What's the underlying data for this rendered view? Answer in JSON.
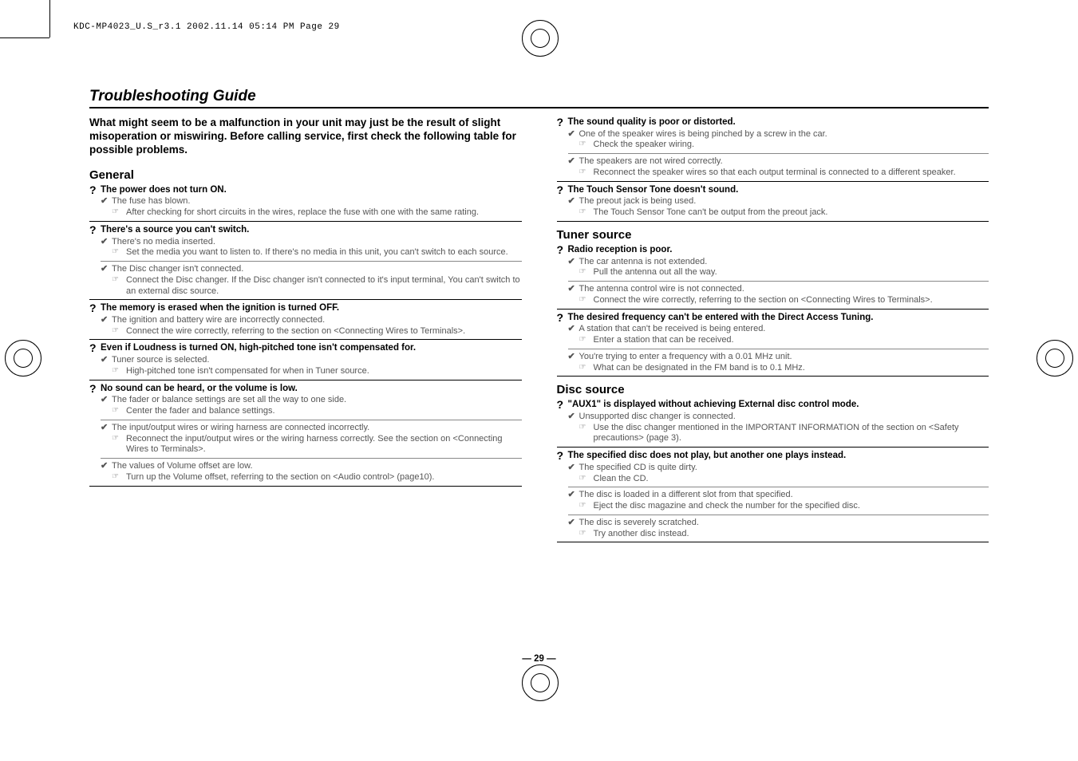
{
  "header_line": "KDC-MP4023_U.S_r3.1  2002.11.14  05:14 PM  Page 29",
  "title": "Troubleshooting Guide",
  "intro": "What might seem to be a malfunction in your unit may just be the result of slight misoperation or miswiring. Before calling service, first check the following table for possible problems.",
  "page_number": "— 29 —",
  "sections": {
    "general": "General",
    "tuner": "Tuner source",
    "disc": "Disc source"
  },
  "left": {
    "q1": {
      "q": "The power does not turn ON.",
      "c1": "The fuse has blown.",
      "r1": "After checking for short circuits in the wires, replace the fuse with one with the same rating."
    },
    "q2": {
      "q": "There's a source you can't switch.",
      "c1": "There's no media inserted.",
      "r1": "Set the media you want to listen to. If there's no media in this unit, you can't switch to each source.",
      "c2": "The Disc changer isn't connected.",
      "r2": "Connect the Disc changer. If the Disc changer isn't connected to it's input terminal, You can't switch to an external disc source."
    },
    "q3": {
      "q": "The memory is erased when the ignition is turned OFF.",
      "c1": "The ignition and battery wire are incorrectly connected.",
      "r1": "Connect the wire correctly, referring to the section on <Connecting Wires to Terminals>."
    },
    "q4": {
      "q": "Even if Loudness is turned ON, high-pitched tone isn't compensated for.",
      "c1": "Tuner source is selected.",
      "r1": "High-pitched tone isn't compensated for when in Tuner source."
    },
    "q5": {
      "q": "No sound can be heard, or the volume is low.",
      "c1": "The fader or balance settings are set all the way to one side.",
      "r1": "Center the fader and balance settings.",
      "c2": "The input/output wires or wiring harness are connected incorrectly.",
      "r2": "Reconnect the input/output wires or the wiring harness correctly. See the section on <Connecting Wires to Terminals>.",
      "c3": "The values of Volume offset are low.",
      "r3": "Turn up the Volume offset, referring to the section on <Audio control> (page10)."
    }
  },
  "right": {
    "q6": {
      "q": "The sound quality is poor or distorted.",
      "c1": "One of the speaker wires is being pinched by a screw in the car.",
      "r1": "Check the speaker wiring.",
      "c2": "The speakers are not wired correctly.",
      "r2": "Reconnect the speaker wires so that each output terminal is connected to a different speaker."
    },
    "q7": {
      "q": "The Touch Sensor Tone doesn't sound.",
      "c1": "The preout jack is being used.",
      "r1": "The Touch Sensor Tone can't be output from the preout jack."
    },
    "q8": {
      "q": "Radio reception is poor.",
      "c1": "The car antenna is not extended.",
      "r1": "Pull the antenna out all the way.",
      "c2": "The antenna control wire is not connected.",
      "r2": "Connect the wire correctly, referring to the section on <Connecting Wires to Terminals>."
    },
    "q9": {
      "q": "The desired frequency can't be entered with the Direct Access Tuning.",
      "c1": "A station that can't be received is being entered.",
      "r1": "Enter a station that can be received.",
      "c2": "You're trying to enter a frequency with a 0.01 MHz unit.",
      "r2": "What can be designated in the FM band is to 0.1 MHz."
    },
    "q10": {
      "q": "\"AUX1\" is displayed without achieving External disc control mode.",
      "c1": "Unsupported disc changer is connected.",
      "r1": "Use the disc changer mentioned in the IMPORTANT INFORMATION of the section on <Safety precautions> (page 3)."
    },
    "q11": {
      "q": "The specified disc does not play, but another one plays instead.",
      "c1": "The specified CD is quite dirty.",
      "r1": "Clean the CD.",
      "c2": "The disc is loaded in a different slot from that specified.",
      "r2": "Eject the disc magazine and check the number for the specified disc.",
      "c3": "The disc is severely scratched.",
      "r3": "Try another disc instead."
    }
  }
}
